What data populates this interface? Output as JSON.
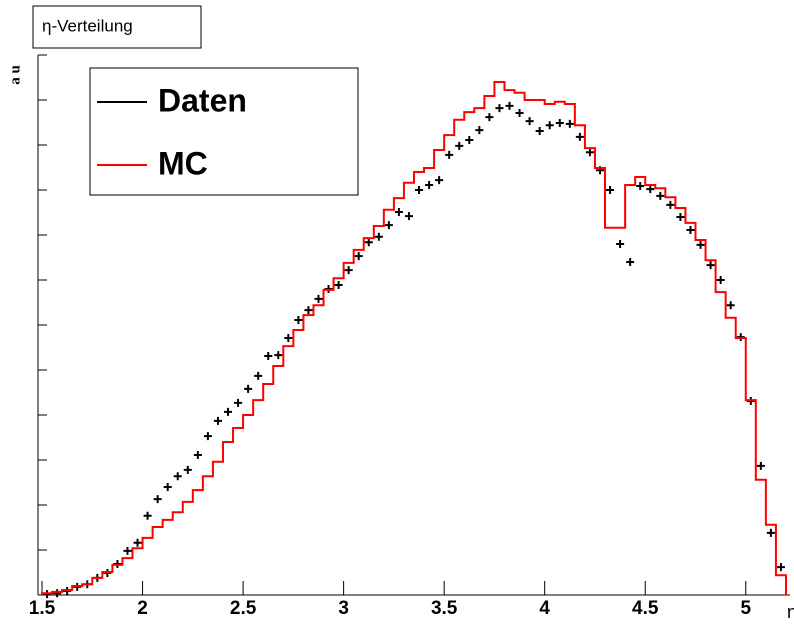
{
  "chart_data": {
    "type": "histogram",
    "title": "η-Verteilung",
    "x_label": "η",
    "y_label": "a u",
    "bins": [
      1.5,
      1.55,
      1.6,
      1.65,
      1.7,
      1.75,
      1.8,
      1.85,
      1.9,
      1.95,
      2.0,
      2.05,
      2.1,
      2.15,
      2.2,
      2.25,
      2.3,
      2.35,
      2.4,
      2.45,
      2.5,
      2.55,
      2.6,
      2.65,
      2.7,
      2.75,
      2.8,
      2.85,
      2.9,
      2.95,
      3.0,
      3.05,
      3.1,
      3.15,
      3.2,
      3.25,
      3.3,
      3.35,
      3.4,
      3.45,
      3.5,
      3.55,
      3.6,
      3.65,
      3.7,
      3.75,
      3.8,
      3.85,
      3.9,
      3.95,
      4.0,
      4.05,
      4.1,
      4.15,
      4.2,
      4.25,
      4.3,
      4.35,
      4.4,
      4.45,
      4.5,
      4.55,
      4.6,
      4.65,
      4.7,
      4.75,
      4.8,
      4.85,
      4.9,
      4.95,
      5.0,
      5.05,
      5.1,
      5.15,
      5.2
    ],
    "series": [
      {
        "name": "Daten",
        "color": "#000000",
        "style": "points",
        "values": [
          0.02,
          0.04,
          0.09,
          0.18,
          0.24,
          0.38,
          0.49,
          0.69,
          0.98,
          1.16,
          1.76,
          2.13,
          2.4,
          2.64,
          2.78,
          3.11,
          3.53,
          3.87,
          4.07,
          4.27,
          4.58,
          4.87,
          5.31,
          5.33,
          5.71,
          6.11,
          6.33,
          6.58,
          6.8,
          6.89,
          7.22,
          7.53,
          7.84,
          7.96,
          8.22,
          8.51,
          8.42,
          9.0,
          9.11,
          9.22,
          9.78,
          9.98,
          10.11,
          10.33,
          10.62,
          10.82,
          10.87,
          10.71,
          10.53,
          10.31,
          10.44,
          10.49,
          10.47,
          10.18,
          9.84,
          9.44,
          9.0,
          7.8,
          7.4,
          9.09,
          9.02,
          8.87,
          8.67,
          8.4,
          8.11,
          7.78,
          7.33,
          7.0,
          6.44,
          5.73,
          4.31,
          2.87,
          1.38,
          0.62
        ]
      },
      {
        "name": "MC",
        "color": "#ff0000",
        "style": "step",
        "values": [
          0.04,
          0.07,
          0.11,
          0.2,
          0.24,
          0.38,
          0.51,
          0.67,
          0.82,
          1.04,
          1.27,
          1.51,
          1.67,
          1.84,
          2.07,
          2.33,
          2.64,
          2.96,
          3.4,
          3.71,
          4.0,
          4.33,
          4.69,
          5.09,
          5.53,
          5.89,
          6.22,
          6.44,
          6.78,
          7.04,
          7.38,
          7.67,
          7.93,
          8.2,
          8.56,
          8.82,
          9.16,
          9.4,
          9.49,
          9.89,
          10.22,
          10.56,
          10.73,
          10.82,
          11.09,
          11.4,
          11.22,
          11.16,
          11.0,
          11.0,
          10.91,
          10.96,
          10.91,
          10.44,
          9.93,
          9.49,
          8.16,
          8.16,
          9.11,
          9.29,
          9.11,
          9.04,
          8.84,
          8.6,
          8.27,
          7.89,
          7.44,
          6.73,
          6.16,
          5.71,
          4.33,
          2.56,
          1.56,
          0.44
        ]
      }
    ],
    "xlim": [
      1.48,
      5.22
    ],
    "xticks": [
      1.5,
      2,
      2.5,
      3,
      3.5,
      4,
      4.5,
      5
    ],
    "ylim": [
      0,
      12
    ],
    "yticks": [
      0,
      1,
      2,
      3,
      4,
      5,
      6,
      7,
      8,
      9,
      10,
      11,
      12
    ],
    "legend": "top-left"
  }
}
